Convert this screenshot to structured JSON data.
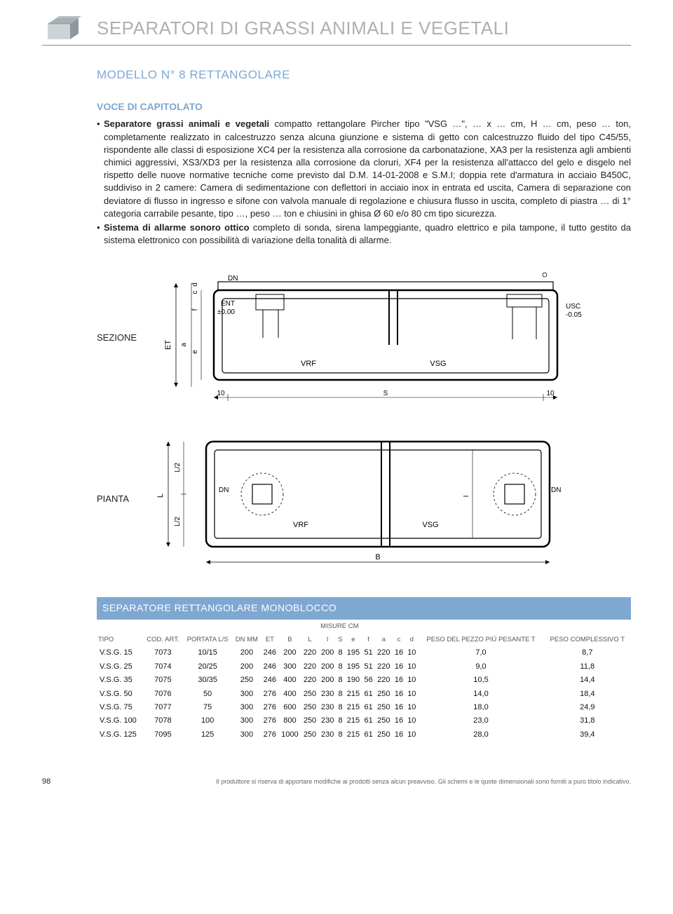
{
  "header": {
    "title": "SEPARATORI DI GRASSI ANIMALI E VEGETALI"
  },
  "model_title": "MODELLO N° 8 RETTANGOLARE",
  "capitolato_heading": "VOCE DI CAPITOLATO",
  "bullets": [
    {
      "lead": "Separatore grassi animali e vegetali",
      "text": " compatto rettangolare Pircher tipo \"VSG …\", … x … cm, H  … cm, peso … ton, completamente realizzato in calcestruzzo senza alcuna giunzione e sistema di getto con calcestruzzo fluido del tipo C45/55, rispondente alle classi di esposizione XC4 per la resistenza alla corrosione da carbonatazione, XA3 per la resistenza agli ambienti chimici aggressivi, XS3/XD3 per la resistenza alla corrosione da cloruri, XF4 per la resistenza all'attacco del gelo e disgelo nel rispetto delle nuove normative tecniche come previsto dal D.M. 14-01-2008 e S.M.I; doppia rete d'armatura in acciaio B450C, suddiviso in 2 camere: Camera di sedimentazione con deflettori in acciaio inox in entrata ed uscita, Camera di separazione con deviatore di flusso in ingresso e sifone con valvola manuale di regolazione e chiusura flusso in uscita, completo di piastra … di 1° categoria carrabile pesante, tipo …, peso … ton e chiusini in ghisa Ø 60 e/o 80 cm tipo sicurezza."
    },
    {
      "lead": "Sistema di allarme sonoro ottico",
      "text": " completo di sonda, sirena lampeggiante, quadro elettrico e pila tampone, il tutto gestito da sistema elettronico con possibilità di variazione della tonalità di allarme."
    }
  ],
  "diagram": {
    "sezione_label": "SEZIONE",
    "pianta_label": "PIANTA",
    "labels": {
      "DN": "DN",
      "ENT": "ENT",
      "ENT_val": "±0.00",
      "USC": "USC",
      "USC_val": "-0.05",
      "VRF": "VRF",
      "VSG": "VSG",
      "ET": "ET",
      "L": "L",
      "L2": "L/2",
      "I": "I",
      "B": "B",
      "S": "S",
      "ten": "10",
      "a": "a",
      "e": "e",
      "f": "f",
      "c": "c",
      "d": "d"
    },
    "stroke": "#000000",
    "stroke_width": 1.2,
    "fill_body": "#ffffff",
    "grid_color": "#e0e0e0"
  },
  "table": {
    "title": "SEPARATORE RETTANGOLARE MONOBLOCCO",
    "group_header": "MISURE CM",
    "columns": [
      "TIPO",
      "COD. ART.",
      "PORTATA L/S",
      "DN MM",
      "ET",
      "B",
      "L",
      "I",
      "S",
      "e",
      "f",
      "a",
      "c",
      "d",
      "PESO DEL PEZZO PIÙ PESANTE  T",
      "PESO COMPLESSIVO T"
    ],
    "rows": [
      [
        "V.S.G. 15",
        "7073",
        "10/15",
        "200",
        "246",
        "200",
        "220",
        "200",
        "8",
        "195",
        "51",
        "220",
        "16",
        "10",
        "7,0",
        "8,7"
      ],
      [
        "V.S.G. 25",
        "7074",
        "20/25",
        "200",
        "246",
        "300",
        "220",
        "200",
        "8",
        "195",
        "51",
        "220",
        "16",
        "10",
        "9,0",
        "11,8"
      ],
      [
        "V.S.G. 35",
        "7075",
        "30/35",
        "250",
        "246",
        "400",
        "220",
        "200",
        "8",
        "190",
        "56",
        "220",
        "16",
        "10",
        "10,5",
        "14,4"
      ],
      [
        "V.S.G. 50",
        "7076",
        "50",
        "300",
        "276",
        "400",
        "250",
        "230",
        "8",
        "215",
        "61",
        "250",
        "16",
        "10",
        "14,0",
        "18,4"
      ],
      [
        "V.S.G. 75",
        "7077",
        "75",
        "300",
        "276",
        "600",
        "250",
        "230",
        "8",
        "215",
        "61",
        "250",
        "16",
        "10",
        "18,0",
        "24,9"
      ],
      [
        "V.S.G. 100",
        "7078",
        "100",
        "300",
        "276",
        "800",
        "250",
        "230",
        "8",
        "215",
        "61",
        "250",
        "16",
        "10",
        "23,0",
        "31,8"
      ],
      [
        "V.S.G. 125",
        "7095",
        "125",
        "300",
        "276",
        "1000",
        "250",
        "230",
        "8",
        "215",
        "61",
        "250",
        "16",
        "10",
        "28,0",
        "39,4"
      ]
    ]
  },
  "footer": {
    "page": "98",
    "note": "Il produttore si riserva di apportare modifiche ai prodotti senza alcun preavviso. Gli schemi e le quote dimensionali sono forniti a puro titolo indicativo."
  }
}
